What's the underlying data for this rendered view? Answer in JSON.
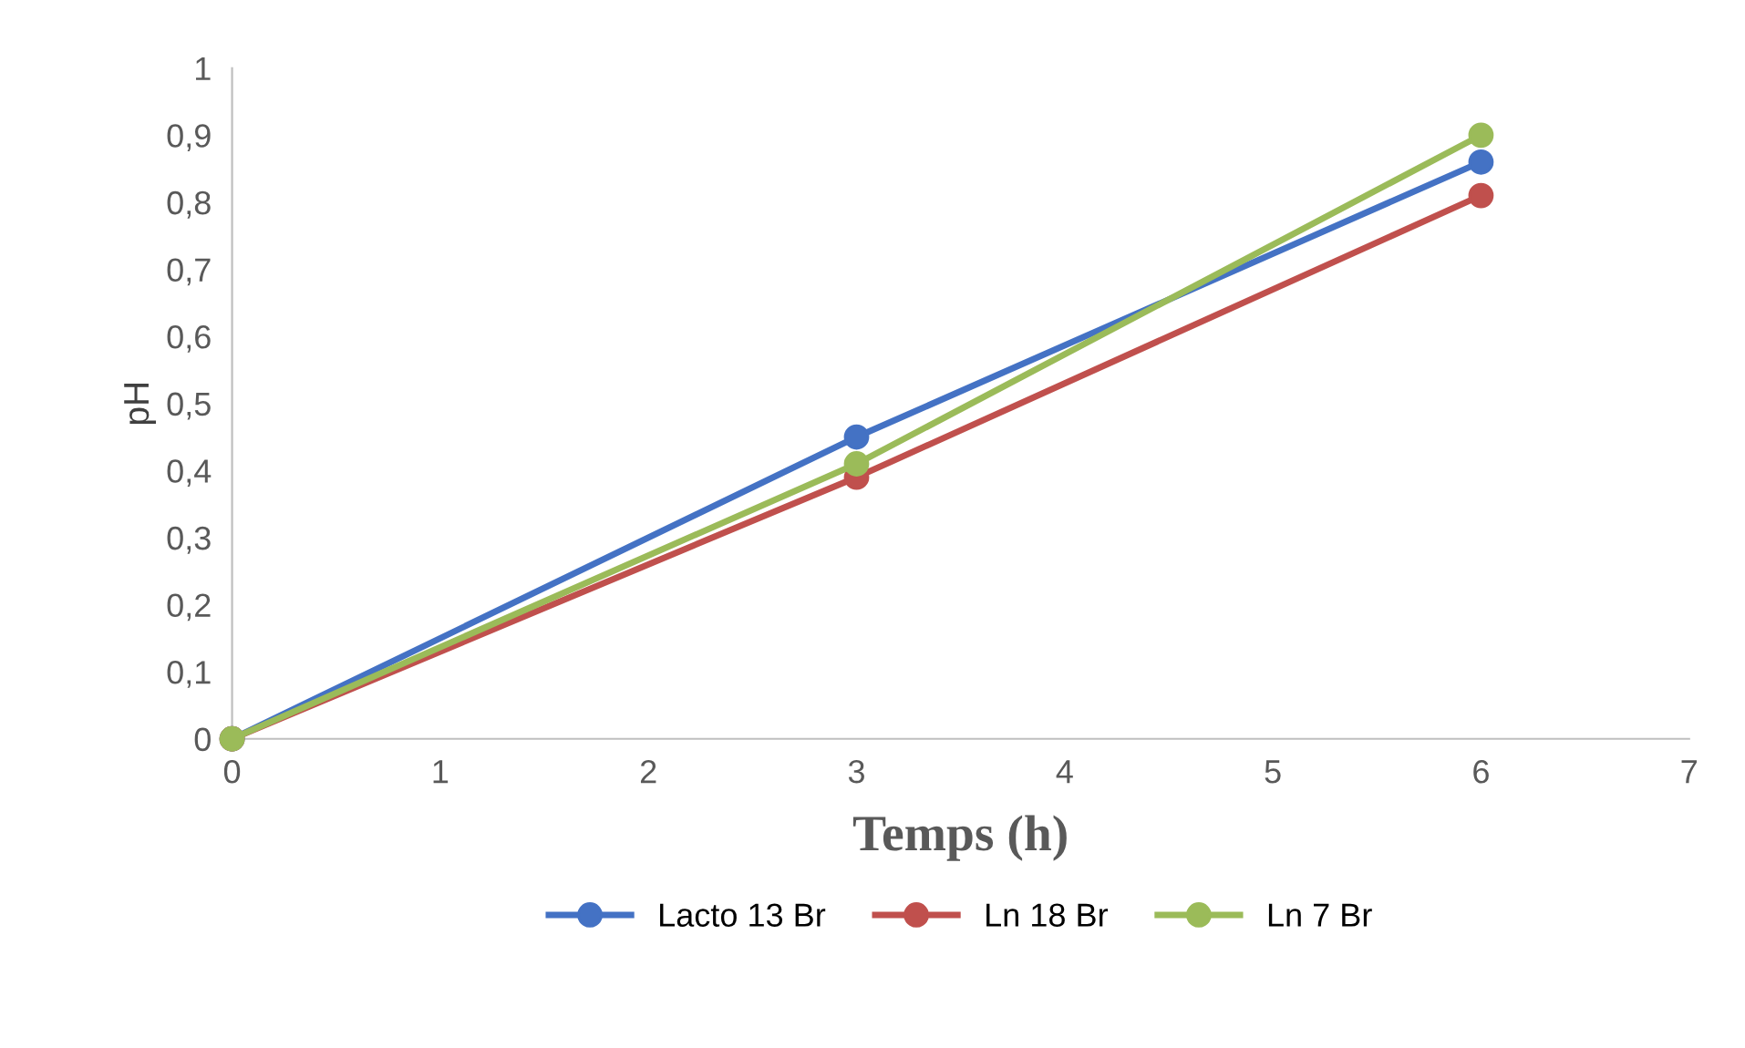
{
  "chart_data": {
    "type": "line",
    "xlabel": "Temps (h)",
    "ylabel": "pH",
    "x": [
      0,
      3,
      6
    ],
    "series": [
      {
        "name": "Lacto 13 Br",
        "color": "#4472c4",
        "values": [
          0,
          0.45,
          0.86
        ]
      },
      {
        "name": "Ln 18 Br",
        "color": "#c0504d",
        "values": [
          0,
          0.39,
          0.81
        ]
      },
      {
        "name": "Ln 7 Br",
        "color": "#9bbb59",
        "values": [
          0,
          0.41,
          0.9
        ]
      }
    ],
    "xlim": [
      0,
      7
    ],
    "xticks": [
      0,
      1,
      2,
      3,
      4,
      5,
      6,
      7
    ],
    "ylim": [
      0,
      1
    ],
    "yticks": [
      0,
      {
        "value": 0.1,
        "label": "0,1"
      },
      {
        "value": 0.2,
        "label": "0,2"
      },
      {
        "value": 0.3,
        "label": "0,3"
      },
      {
        "value": 0.4,
        "label": "0,4"
      },
      {
        "value": 0.5,
        "label": "0,5"
      },
      {
        "value": 0.6,
        "label": "0,6"
      },
      {
        "value": 0.7,
        "label": "0,7"
      },
      {
        "value": 0.8,
        "label": "0,8"
      },
      {
        "value": 0.9,
        "label": "0,9"
      },
      1
    ],
    "grid": false,
    "legend": "bottom",
    "marker": "circle",
    "line_style": "solid"
  }
}
